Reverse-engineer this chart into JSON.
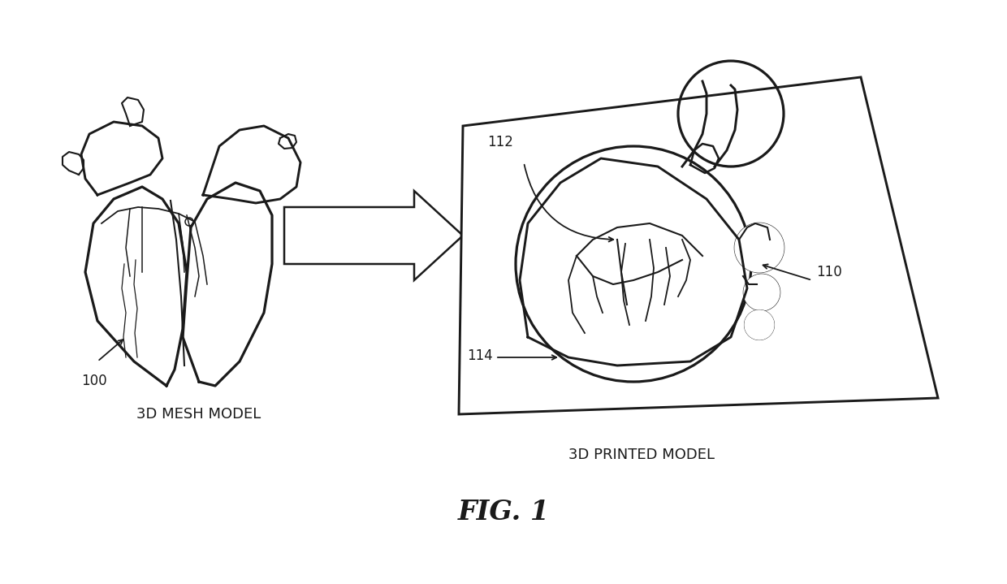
{
  "background_color": "#ffffff",
  "fig_width": 12.4,
  "fig_height": 7.19,
  "dpi": 100,
  "label_3d_mesh": "3D MESH MODEL",
  "label_3d_printed": "3D PRINTED MODEL",
  "fig_label": "FIG. 1",
  "label_100": "100",
  "label_110": "110",
  "label_112": "112",
  "label_114": "114",
  "line_color": "#1a1a1a",
  "line_width": 1.8,
  "text_color": "#1a1a1a",
  "font_size_labels": 13,
  "font_size_numbers": 12,
  "font_size_fig": 24
}
